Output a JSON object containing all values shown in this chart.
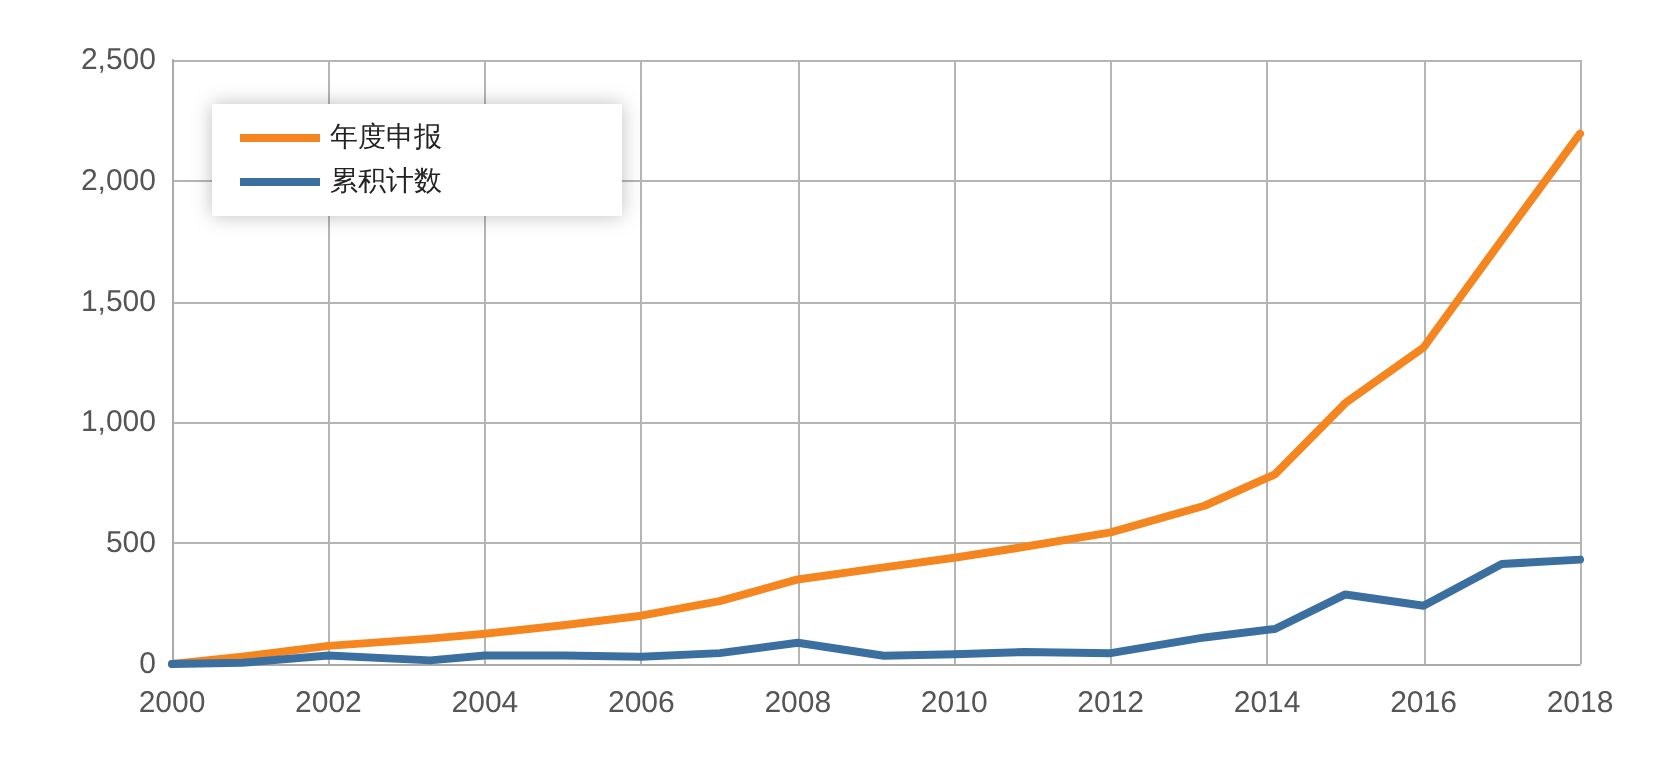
{
  "chart_data": {
    "type": "line",
    "x": [
      2000,
      2000.9,
      2002,
      2003.3,
      2004,
      2005,
      2006,
      2007,
      2008,
      2009.1,
      2010,
      2010.9,
      2012,
      2013.2,
      2014.1,
      2015,
      2016,
      2017,
      2018
    ],
    "series": [
      {
        "name": "年度申报",
        "color": "#f5861f",
        "values": [
          0,
          30,
          75,
          105,
          125,
          160,
          200,
          260,
          350,
          400,
          440,
          485,
          545,
          655,
          785,
          1080,
          1310,
          1755,
          2195
        ]
      },
      {
        "name": "累积计数",
        "color": "#3b6fa0",
        "values": [
          0,
          5,
          35,
          15,
          35,
          35,
          30,
          45,
          88,
          34,
          40,
          50,
          45,
          110,
          145,
          288,
          241,
          414,
          432
        ]
      }
    ],
    "xlim": [
      2000,
      2018
    ],
    "xticks": [
      2000,
      2002,
      2004,
      2006,
      2008,
      2010,
      2012,
      2014,
      2016,
      2018
    ],
    "ylim": [
      0,
      2500
    ],
    "yticks": [
      {
        "value": 0,
        "label": "0"
      },
      {
        "value": 500,
        "label": "500"
      },
      {
        "value": 1000,
        "label": "1,000"
      },
      {
        "value": 1500,
        "label": "1,500"
      },
      {
        "value": 2000,
        "label": "2,000"
      },
      {
        "value": 2500,
        "label": "2,500"
      }
    ],
    "grid": true,
    "legend": "top left",
    "marker": "none",
    "line_style": "solid"
  }
}
